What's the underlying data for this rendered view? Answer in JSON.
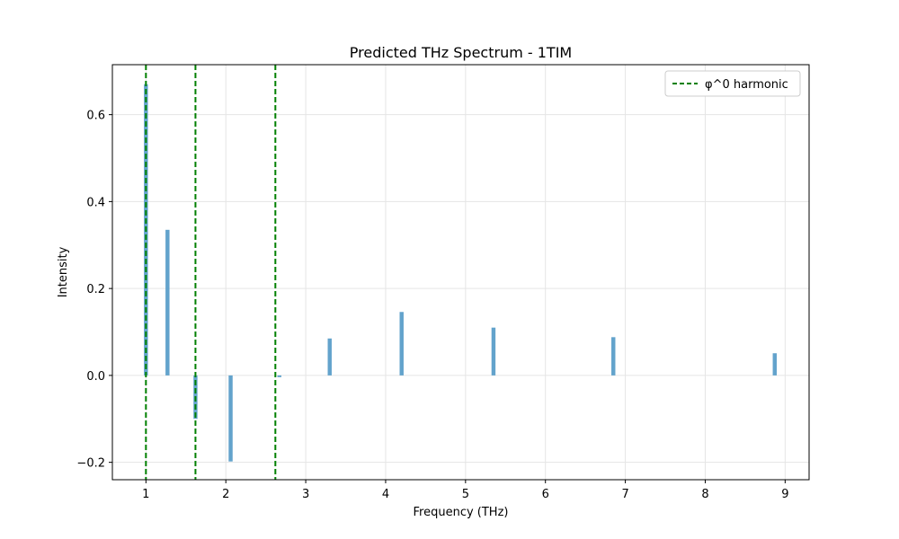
{
  "chart_data": {
    "type": "bar",
    "title": "Predicted THz Spectrum - 1TIM",
    "xlabel": "Frequency (THz)",
    "ylabel": "Intensity",
    "xlim": [
      0.58,
      9.3
    ],
    "ylim": [
      -0.24,
      0.715
    ],
    "xticks": [
      1,
      2,
      3,
      4,
      5,
      6,
      7,
      8,
      9
    ],
    "xtick_labels": [
      "1",
      "2",
      "3",
      "4",
      "5",
      "6",
      "7",
      "8",
      "9"
    ],
    "yticks": [
      -0.2,
      0.0,
      0.2,
      0.4,
      0.6
    ],
    "ytick_labels": [
      "−0.2",
      "0.0",
      "0.2",
      "0.4",
      "0.6"
    ],
    "grid": true,
    "bar_color": "#5b9ec9",
    "bar_width_thz": 0.05,
    "bars": [
      {
        "x": 1.0,
        "value": 0.67
      },
      {
        "x": 1.27,
        "value": 0.335
      },
      {
        "x": 1.62,
        "value": -0.1
      },
      {
        "x": 2.06,
        "value": -0.198
      },
      {
        "x": 2.67,
        "value": -0.004
      },
      {
        "x": 3.3,
        "value": 0.085
      },
      {
        "x": 4.2,
        "value": 0.146
      },
      {
        "x": 5.35,
        "value": 0.11
      },
      {
        "x": 6.85,
        "value": 0.088
      },
      {
        "x": 8.87,
        "value": 0.051
      }
    ],
    "harmonic_lines": {
      "legend_label": "φ^0 harmonic",
      "color": "#008000",
      "x": [
        1.0,
        1.62,
        2.62
      ]
    },
    "legend_placement": "top-right"
  }
}
